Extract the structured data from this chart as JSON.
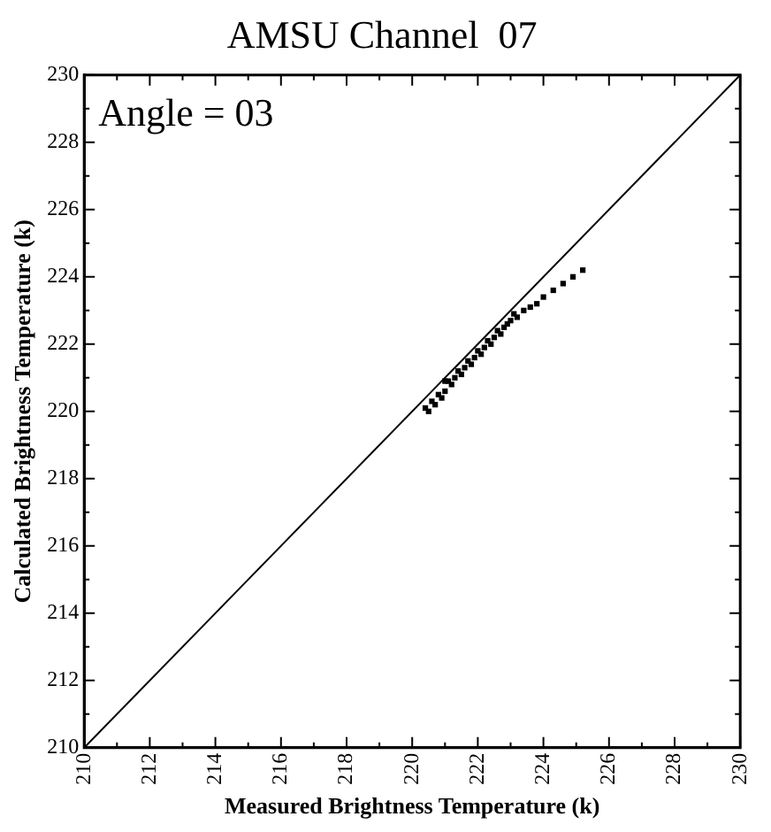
{
  "chart_data": {
    "type": "scatter",
    "title": "AMSU Channel  07",
    "xlabel": "Measured Brightness Temperature (k)",
    "ylabel": "Calculated Brightness Temperature (k)",
    "annotations": [
      "Angle = 03"
    ],
    "xlim": [
      210,
      230
    ],
    "ylim": [
      210,
      230
    ],
    "xticks": [
      210,
      {
        "value": 211,
        "label": null
      },
      212,
      {
        "value": 213,
        "label": null
      },
      214,
      {
        "value": 215,
        "label": null
      },
      216,
      {
        "value": 217,
        "label": null
      },
      218,
      {
        "value": 219,
        "label": null
      },
      220,
      {
        "value": 221,
        "label": null
      },
      222,
      {
        "value": 223,
        "label": null
      },
      224,
      {
        "value": 225,
        "label": null
      },
      226,
      {
        "value": 227,
        "label": null
      },
      228,
      {
        "value": 229,
        "label": null
      },
      230
    ],
    "yticks": [
      210,
      {
        "value": 211,
        "label": null
      },
      212,
      {
        "value": 213,
        "label": null
      },
      214,
      {
        "value": 215,
        "label": null
      },
      216,
      {
        "value": 217,
        "label": null
      },
      218,
      {
        "value": 219,
        "label": null
      },
      220,
      {
        "value": 221,
        "label": null
      },
      222,
      {
        "value": 223,
        "label": null
      },
      224,
      {
        "value": 225,
        "label": null
      },
      226,
      {
        "value": 227,
        "label": null
      },
      228,
      {
        "value": 229,
        "label": null
      },
      230
    ],
    "series": [
      {
        "marker": "square",
        "color": "#000000",
        "x": [
          220.4,
          220.5,
          220.6,
          220.7,
          220.8,
          220.9,
          221.0,
          221.0,
          221.1,
          221.2,
          221.3,
          221.4,
          221.5,
          221.6,
          221.7,
          221.8,
          221.9,
          222.0,
          222.1,
          222.2,
          222.3,
          222.4,
          222.5,
          222.6,
          222.7,
          222.8,
          222.9,
          223.0,
          223.1,
          223.2,
          223.4,
          223.6,
          223.8,
          224.0,
          224.3,
          224.6,
          224.9,
          225.2
        ],
        "values": [
          220.1,
          220.0,
          220.3,
          220.2,
          220.5,
          220.4,
          220.6,
          220.9,
          220.9,
          220.8,
          221.0,
          221.2,
          221.1,
          221.3,
          221.5,
          221.4,
          221.6,
          221.8,
          221.7,
          221.9,
          222.1,
          222.0,
          222.2,
          222.4,
          222.3,
          222.5,
          222.6,
          222.7,
          222.9,
          222.8,
          223.0,
          223.1,
          223.2,
          223.4,
          223.6,
          223.8,
          224.0,
          224.2
        ]
      },
      {
        "type": "line",
        "color": "#000000",
        "x": [
          210,
          230
        ],
        "values": [
          210,
          230
        ]
      }
    ]
  }
}
